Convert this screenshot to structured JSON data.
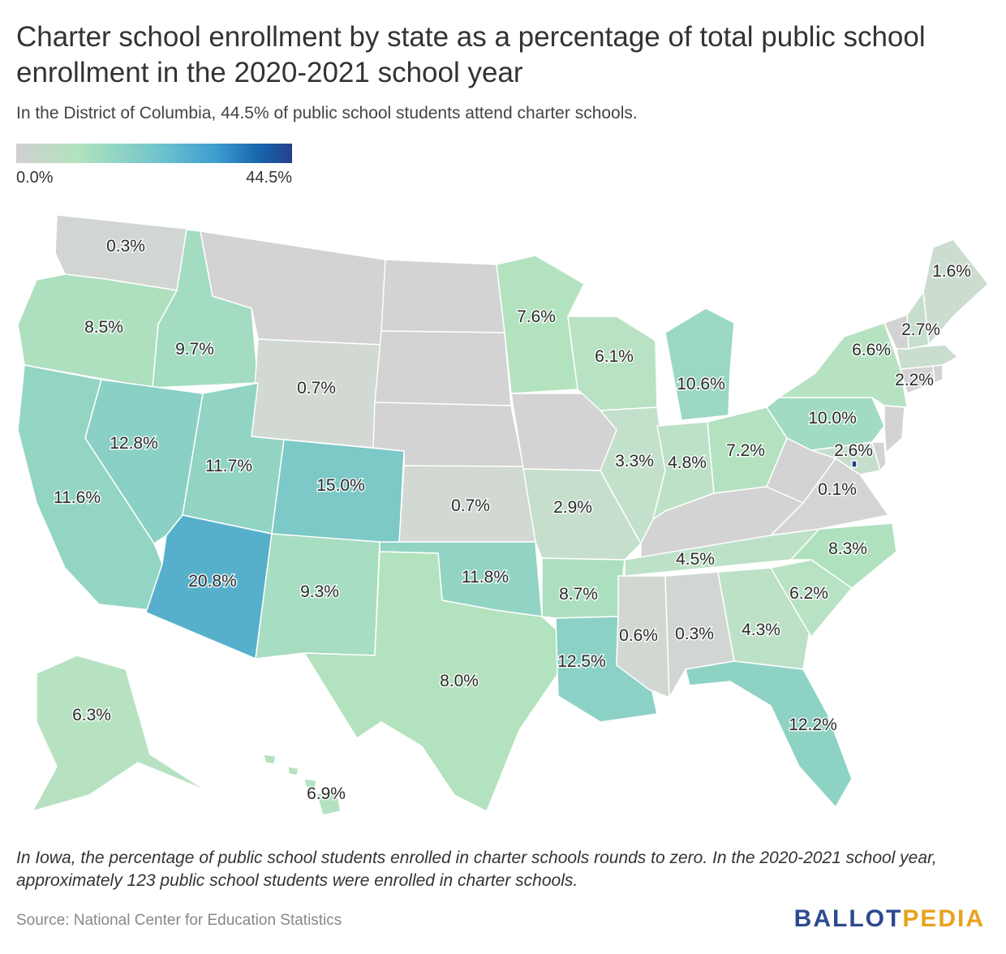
{
  "title": "Charter school enrollment by state as a percentage of total public school enrollment in the 2020-2021 school year",
  "subtitle": "In the District of Columbia, 44.5% of public school students attend charter schools.",
  "legend": {
    "min_label": "0.0%",
    "max_label": "44.5%"
  },
  "footnote": "In Iowa, the percentage of public school students enrolled in charter schools rounds to zero. In the 2020-2021 school year, approximately 123 public school students were enrolled in charter schools.",
  "source": "Source: National Center for Education Statistics",
  "logo": {
    "part1": "BALLOT",
    "part2": "PEDIA"
  },
  "colors": {
    "zero": "#d3d3d3",
    "low": "#b4e3bf",
    "mid": "#8fd3c3",
    "high": "#6fc5c9",
    "top": "#4eaacc",
    "dc": "#253f8e"
  },
  "chart_data": {
    "type": "map",
    "unit": "%",
    "scale": {
      "min": 0.0,
      "max": 44.5
    },
    "states": [
      {
        "name": "Washington",
        "value": 0.3,
        "label": "0.3%"
      },
      {
        "name": "Oregon",
        "value": 8.5,
        "label": "8.5%"
      },
      {
        "name": "California",
        "value": 11.6,
        "label": "11.6%"
      },
      {
        "name": "Idaho",
        "value": 9.7,
        "label": "9.7%"
      },
      {
        "name": "Nevada",
        "value": 12.8,
        "label": "12.8%"
      },
      {
        "name": "Montana",
        "value": 0.0,
        "label": ""
      },
      {
        "name": "Wyoming",
        "value": 0.7,
        "label": "0.7%"
      },
      {
        "name": "Utah",
        "value": 11.7,
        "label": "11.7%"
      },
      {
        "name": "Arizona",
        "value": 20.8,
        "label": "20.8%"
      },
      {
        "name": "Colorado",
        "value": 15.0,
        "label": "15.0%"
      },
      {
        "name": "New Mexico",
        "value": 9.3,
        "label": "9.3%"
      },
      {
        "name": "North Dakota",
        "value": 0.0,
        "label": ""
      },
      {
        "name": "South Dakota",
        "value": 0.0,
        "label": ""
      },
      {
        "name": "Nebraska",
        "value": 0.0,
        "label": ""
      },
      {
        "name": "Kansas",
        "value": 0.7,
        "label": "0.7%"
      },
      {
        "name": "Oklahoma",
        "value": 11.8,
        "label": "11.8%"
      },
      {
        "name": "Texas",
        "value": 8.0,
        "label": "8.0%"
      },
      {
        "name": "Minnesota",
        "value": 7.6,
        "label": "7.6%"
      },
      {
        "name": "Iowa",
        "value": 0.0,
        "label": ""
      },
      {
        "name": "Missouri",
        "value": 2.9,
        "label": "2.9%"
      },
      {
        "name": "Arkansas",
        "value": 8.7,
        "label": "8.7%"
      },
      {
        "name": "Louisiana",
        "value": 12.5,
        "label": "12.5%"
      },
      {
        "name": "Wisconsin",
        "value": 6.1,
        "label": "6.1%"
      },
      {
        "name": "Illinois",
        "value": 3.3,
        "label": "3.3%"
      },
      {
        "name": "Michigan",
        "value": 10.6,
        "label": "10.6%"
      },
      {
        "name": "Indiana",
        "value": 4.8,
        "label": "4.8%"
      },
      {
        "name": "Ohio",
        "value": 7.2,
        "label": "7.2%"
      },
      {
        "name": "Kentucky",
        "value": 0.0,
        "label": ""
      },
      {
        "name": "Tennessee",
        "value": 4.5,
        "label": "4.5%"
      },
      {
        "name": "Mississippi",
        "value": 0.6,
        "label": "0.6%"
      },
      {
        "name": "Alabama",
        "value": 0.3,
        "label": "0.3%"
      },
      {
        "name": "Georgia",
        "value": 4.3,
        "label": "4.3%"
      },
      {
        "name": "Florida",
        "value": 12.2,
        "label": "12.2%"
      },
      {
        "name": "South Carolina",
        "value": 6.2,
        "label": "6.2%"
      },
      {
        "name": "North Carolina",
        "value": 8.3,
        "label": "8.3%"
      },
      {
        "name": "Virginia",
        "value": 0.1,
        "label": "0.1%"
      },
      {
        "name": "West Virginia",
        "value": 0.0,
        "label": ""
      },
      {
        "name": "Maryland",
        "value": 2.6,
        "label": "2.6%"
      },
      {
        "name": "Delaware",
        "value": 0.0,
        "label": ""
      },
      {
        "name": "District of Columbia",
        "value": 44.5,
        "label": ""
      },
      {
        "name": "Pennsylvania",
        "value": 10.0,
        "label": "10.0%"
      },
      {
        "name": "New Jersey",
        "value": 0.0,
        "label": ""
      },
      {
        "name": "New York",
        "value": 6.6,
        "label": "6.6%"
      },
      {
        "name": "Connecticut",
        "value": 0.0,
        "label": ""
      },
      {
        "name": "Rhode Island",
        "value": 0.0,
        "label": ""
      },
      {
        "name": "Massachusetts",
        "value": 2.2,
        "label": "2.2%"
      },
      {
        "name": "Vermont",
        "value": 0.0,
        "label": ""
      },
      {
        "name": "New Hampshire",
        "value": 2.7,
        "label": "2.7%"
      },
      {
        "name": "Maine",
        "value": 1.6,
        "label": "1.6%"
      },
      {
        "name": "Alaska",
        "value": 6.3,
        "label": "6.3%"
      },
      {
        "name": "Hawaii",
        "value": 6.9,
        "label": "6.9%"
      }
    ]
  }
}
